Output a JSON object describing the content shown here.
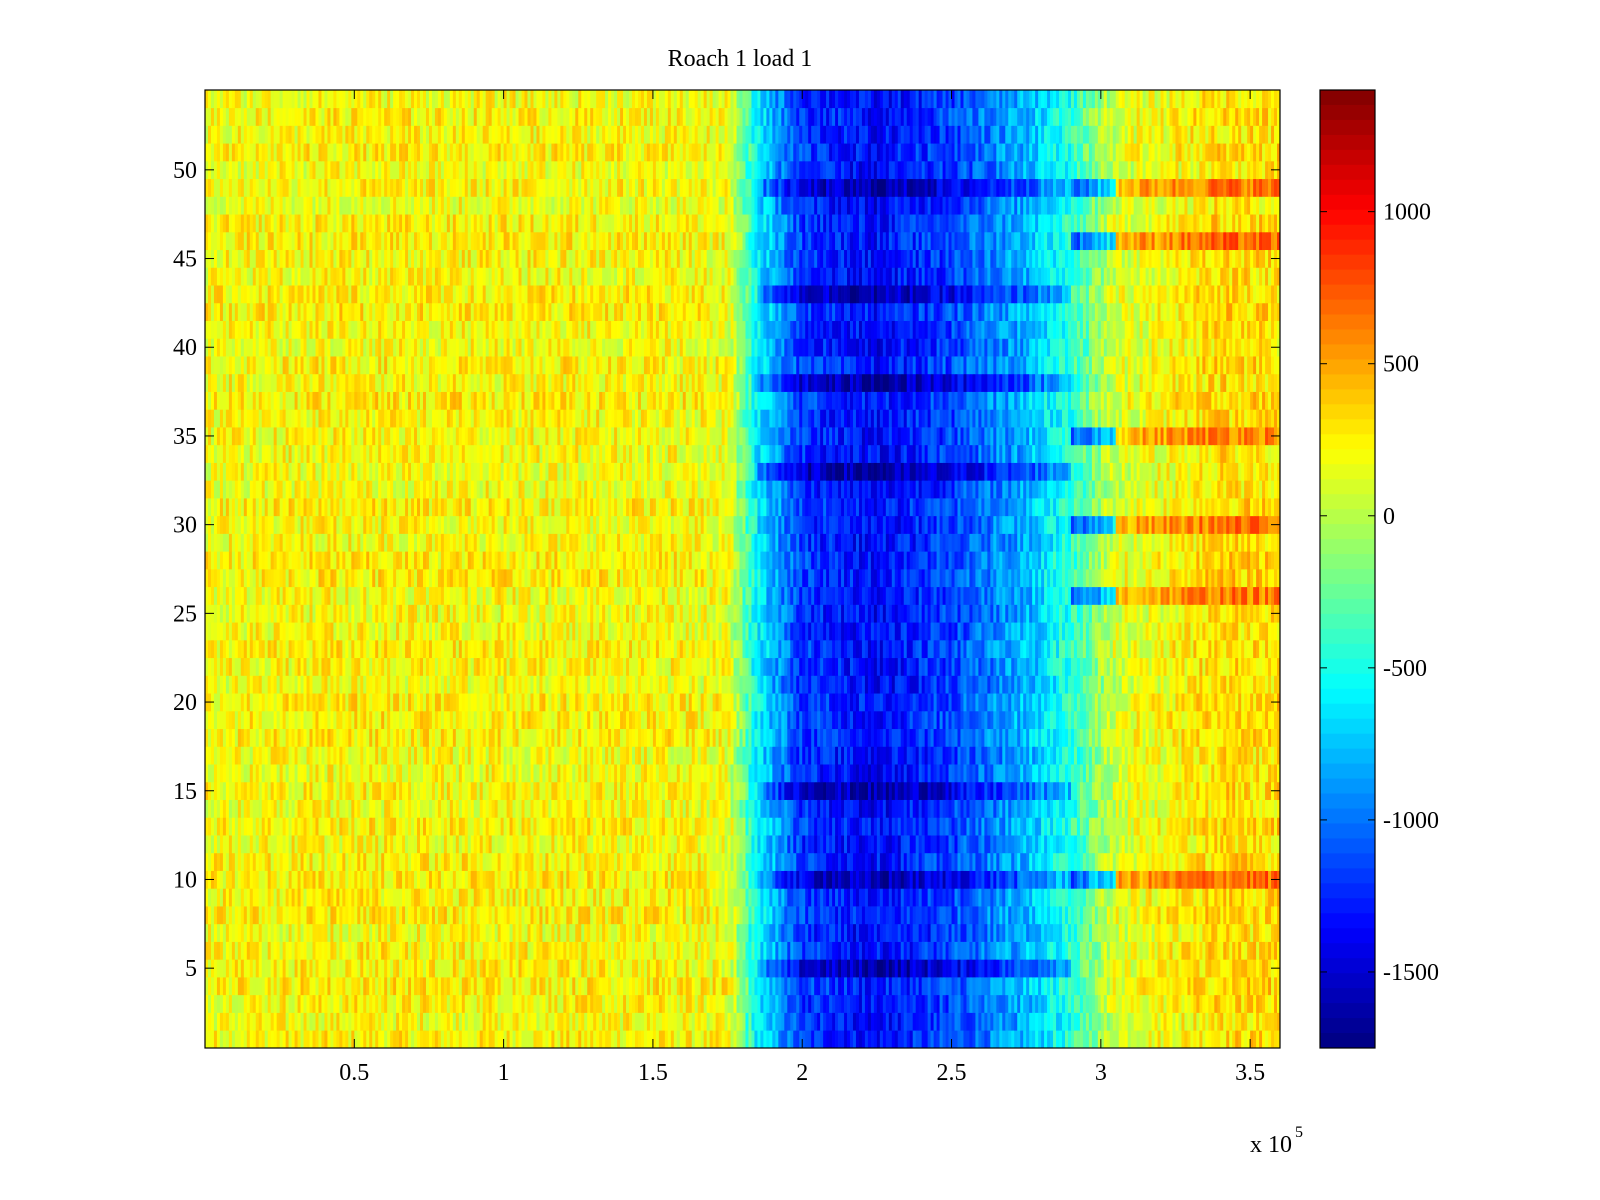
{
  "chart_data": {
    "type": "heatmap",
    "title": "Roach 1 load 1",
    "xlabel": "",
    "ylabel": "",
    "x_exponent_label": {
      "base": "x 10",
      "exponent": "5"
    },
    "xlim": [
      0,
      3.6
    ],
    "ylim": [
      0.5,
      54.5
    ],
    "x_ticks": [
      0.5,
      1,
      1.5,
      2,
      2.5,
      3,
      3.5
    ],
    "x_tick_labels": [
      "0.5",
      "1",
      "1.5",
      "2",
      "2.5",
      "3",
      "3.5"
    ],
    "y_ticks": [
      5,
      10,
      15,
      20,
      25,
      30,
      35,
      40,
      45,
      50
    ],
    "y_tick_labels": [
      "5",
      "10",
      "15",
      "20",
      "25",
      "30",
      "35",
      "40",
      "45",
      "50"
    ],
    "rows": 54,
    "colormap": "jet",
    "colorbar": {
      "range": [
        -1750,
        1400
      ],
      "ticks": [
        1000,
        500,
        0,
        -500,
        -1000,
        -1500
      ],
      "tick_labels": [
        "1000",
        "500",
        "0",
        "-500",
        "-1000",
        "-1500"
      ]
    },
    "region_profile": {
      "x": [
        0.0,
        0.5,
        1.0,
        1.5,
        1.75,
        1.85,
        2.0,
        2.25,
        2.5,
        2.75,
        2.9,
        3.05,
        3.4,
        3.6
      ],
      "value": [
        200,
        230,
        220,
        220,
        180,
        -600,
        -1200,
        -1350,
        -1150,
        -800,
        -450,
        100,
        320,
        300
      ]
    },
    "notable_rows": {
      "dark_band_rows": [
        10,
        49,
        43,
        38,
        33,
        5,
        15
      ],
      "hot_right_rows": [
        10,
        49,
        46,
        30,
        35,
        26
      ]
    },
    "grid": false,
    "legend": "none"
  }
}
